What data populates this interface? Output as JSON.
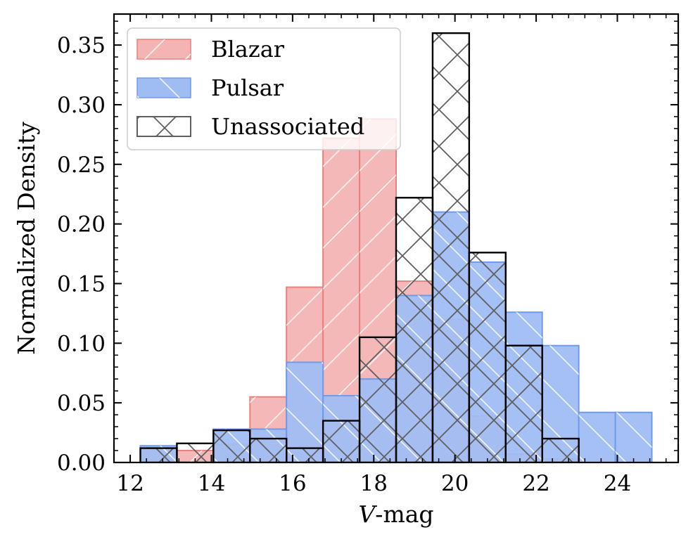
{
  "chart_data": {
    "type": "histogram",
    "title": "",
    "xlabel_italic": "V",
    "xlabel_rest": "-mag",
    "ylabel": "Normalized Density",
    "xlim": [
      11.6,
      25.5
    ],
    "ylim": [
      0.0,
      0.376
    ],
    "xticks": [
      12,
      14,
      16,
      18,
      20,
      22,
      24
    ],
    "yticks": [
      0.0,
      0.05,
      0.1,
      0.15,
      0.2,
      0.25,
      0.3,
      0.35
    ],
    "ytick_labels": [
      "0.00",
      "0.05",
      "0.10",
      "0.15",
      "0.20",
      "0.25",
      "0.30",
      "0.35"
    ],
    "legend_position": "top-left",
    "series": [
      {
        "name": "Blazar",
        "style": "filled-diagonal-hatch",
        "fill": "#f4b4b4",
        "edge": "#e8807f",
        "hatch_color": "#ffffff",
        "bins": [
          {
            "x0": 12.25,
            "x1": 13.15,
            "y": 0.011
          },
          {
            "x0": 13.15,
            "x1": 14.05,
            "y": 0.01
          },
          {
            "x0": 14.05,
            "x1": 14.95,
            "y": 0.015
          },
          {
            "x0": 14.95,
            "x1": 15.85,
            "y": 0.055
          },
          {
            "x0": 15.85,
            "x1": 16.75,
            "y": 0.147
          },
          {
            "x0": 16.75,
            "x1": 17.65,
            "y": 0.272
          },
          {
            "x0": 17.65,
            "x1": 18.55,
            "y": 0.288
          },
          {
            "x0": 18.55,
            "x1": 19.45,
            "y": 0.152
          },
          {
            "x0": 19.45,
            "x1": 20.35,
            "y": 0.12
          },
          {
            "x0": 20.35,
            "x1": 21.25,
            "y": 0.039
          },
          {
            "x0": 21.25,
            "x1": 22.15,
            "y": 0.007
          },
          {
            "x0": 22.15,
            "x1": 23.05,
            "y": 0.003
          }
        ]
      },
      {
        "name": "Pulsar",
        "style": "filled-diagonal-hatch",
        "fill": "#a0bdf3",
        "edge": "#6f9bea",
        "hatch_color": "#ffffff",
        "bins": [
          {
            "x0": 12.25,
            "x1": 13.15,
            "y": 0.014
          },
          {
            "x0": 13.15,
            "x1": 14.05,
            "y": 0.0
          },
          {
            "x0": 14.05,
            "x1": 14.95,
            "y": 0.028
          },
          {
            "x0": 14.95,
            "x1": 15.85,
            "y": 0.028
          },
          {
            "x0": 15.85,
            "x1": 16.75,
            "y": 0.084
          },
          {
            "x0": 16.75,
            "x1": 17.65,
            "y": 0.056
          },
          {
            "x0": 17.65,
            "x1": 18.55,
            "y": 0.07
          },
          {
            "x0": 18.55,
            "x1": 19.45,
            "y": 0.14
          },
          {
            "x0": 19.45,
            "x1": 20.35,
            "y": 0.21
          },
          {
            "x0": 20.35,
            "x1": 21.25,
            "y": 0.168
          },
          {
            "x0": 21.25,
            "x1": 22.15,
            "y": 0.126
          },
          {
            "x0": 22.15,
            "x1": 23.05,
            "y": 0.098
          },
          {
            "x0": 23.05,
            "x1": 23.95,
            "y": 0.042
          },
          {
            "x0": 23.95,
            "x1": 24.85,
            "y": 0.042
          }
        ]
      },
      {
        "name": "Unassociated",
        "style": "outline-cross-hatch",
        "fill": "none",
        "edge": "#000000",
        "hatch_color": "#5f5f5f",
        "bins": [
          {
            "x0": 12.25,
            "x1": 13.15,
            "y": 0.012
          },
          {
            "x0": 13.15,
            "x1": 14.05,
            "y": 0.016
          },
          {
            "x0": 14.05,
            "x1": 14.95,
            "y": 0.027
          },
          {
            "x0": 14.95,
            "x1": 15.85,
            "y": 0.02
          },
          {
            "x0": 15.85,
            "x1": 16.75,
            "y": 0.012
          },
          {
            "x0": 16.75,
            "x1": 17.65,
            "y": 0.035
          },
          {
            "x0": 17.65,
            "x1": 18.55,
            "y": 0.105
          },
          {
            "x0": 18.55,
            "x1": 19.45,
            "y": 0.222
          },
          {
            "x0": 19.45,
            "x1": 20.35,
            "y": 0.36
          },
          {
            "x0": 20.35,
            "x1": 21.25,
            "y": 0.176
          },
          {
            "x0": 21.25,
            "x1": 22.15,
            "y": 0.098
          },
          {
            "x0": 22.15,
            "x1": 23.05,
            "y": 0.02
          }
        ]
      }
    ]
  }
}
